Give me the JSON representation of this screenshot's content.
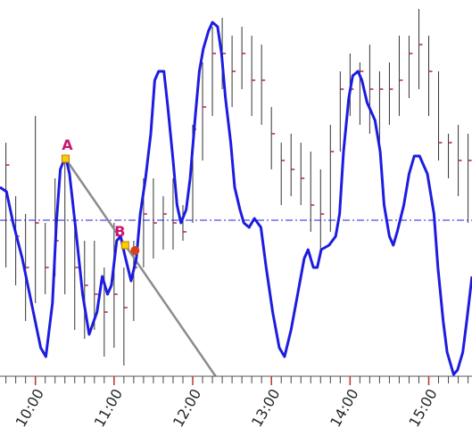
{
  "chart_data": {
    "type": "line",
    "x": [
      573,
      578,
      583,
      590,
      597,
      604,
      608,
      613,
      616,
      619,
      623,
      626,
      631,
      636,
      641,
      647,
      651,
      655,
      658,
      662,
      665,
      668,
      673,
      677,
      680,
      684,
      688,
      691,
      694,
      698,
      701,
      705,
      708,
      711,
      715,
      718,
      722,
      725,
      728,
      732,
      735,
      739,
      742,
      745,
      749,
      752,
      756,
      759,
      763,
      767,
      772,
      776,
      781,
      786,
      790,
      795,
      800,
      805,
      808,
      812,
      815,
      818,
      824,
      829,
      832,
      835,
      839,
      842,
      846,
      849,
      853,
      856,
      859,
      863,
      866,
      870,
      873,
      876,
      881,
      885,
      889,
      893,
      899,
      904,
      907,
      911,
      914,
      919,
      922,
      926,
      929,
      933
    ],
    "values": [
      212,
      207,
      172,
      132,
      82,
      32,
      22,
      82,
      172,
      232,
      247,
      227,
      162,
      92,
      47,
      72,
      112,
      92,
      102,
      152,
      157,
      137,
      107,
      132,
      182,
      222,
      272,
      332,
      342,
      342,
      302,
      242,
      192,
      172,
      187,
      222,
      292,
      342,
      367,
      387,
      397,
      392,
      362,
      312,
      262,
      212,
      187,
      172,
      167,
      177,
      167,
      122,
      72,
      32,
      22,
      52,
      92,
      132,
      142,
      122,
      122,
      142,
      147,
      157,
      182,
      252,
      312,
      337,
      342,
      332,
      307,
      297,
      287,
      252,
      192,
      157,
      147,
      162,
      192,
      227,
      247,
      247,
      227,
      182,
      122,
      62,
      27,
      2,
      7,
      27,
      62,
      112
    ],
    "color": "#1c1ce0",
    "bars": {
      "x": [
        577.5,
        585,
        592.5,
        600,
        607.5,
        615,
        622.5,
        630,
        637.5,
        645,
        652.5,
        660,
        667.5,
        675,
        682.5,
        690,
        697.5,
        705,
        712.5,
        720,
        727.5,
        735,
        742.5,
        750,
        757.5,
        765,
        772.5,
        780,
        787.5,
        795,
        802.5,
        810,
        817.5,
        825,
        832.5,
        840,
        847.5,
        855,
        862.5,
        870,
        877.5,
        885,
        892.5,
        900,
        907.5,
        915,
        922.5,
        930
      ],
      "high": [
        262,
        202,
        182,
        292,
        172,
        222,
        247,
        182,
        152,
        152,
        122,
        172,
        122,
        152,
        222,
        222,
        202,
        222,
        192,
        282,
        352,
        392,
        402,
        382,
        392,
        382,
        372,
        302,
        262,
        272,
        262,
        252,
        232,
        282,
        342,
        362,
        352,
        372,
        342,
        352,
        382,
        382,
        412,
        382,
        342,
        272,
        282,
        272
      ],
      "low": [
        122,
        102,
        62,
        82,
        92,
        112,
        92,
        52,
        42,
        52,
        22,
        32,
        12,
        62,
        122,
        132,
        142,
        142,
        152,
        172,
        242,
        292,
        322,
        302,
        322,
        292,
        282,
        232,
        192,
        202,
        192,
        162,
        142,
        162,
        252,
        292,
        282,
        272,
        262,
        282,
        292,
        312,
        322,
        292,
        242,
        222,
        202,
        172
      ],
      "close": [
        237,
        157,
        122,
        172,
        122,
        152,
        242,
        122,
        102,
        92,
        72,
        92,
        77,
        122,
        182,
        172,
        182,
        172,
        162,
        277,
        302,
        362,
        362,
        342,
        362,
        332,
        332,
        272,
        242,
        232,
        222,
        192,
        182,
        252,
        322,
        322,
        342,
        322,
        322,
        322,
        332,
        362,
        372,
        342,
        262,
        262,
        242,
        242
      ],
      "color": "#333333",
      "close_color": "#b0205a"
    },
    "hline": {
      "value": 175,
      "color": "#1c1ce0"
    },
    "trendline": {
      "x": [
        623,
        668.5
      ],
      "y": [
        244,
        147
      ],
      "color": "#8c8c8c"
    },
    "annotations": [
      {
        "text": "A",
        "x": 623,
        "y": 244
      },
      {
        "text": "B",
        "x": 668.5,
        "y": 147
      }
    ],
    "annotation_color": "#c8186e",
    "marker": {
      "x": 676,
      "y": 141,
      "color": "#d8401a"
    },
    "xlim": [
      573,
      933
    ],
    "ylim": [
      0,
      422
    ],
    "xticks": [
      {
        "value": 600,
        "label": "10:00"
      },
      {
        "value": 660,
        "label": "11:00"
      },
      {
        "value": 720,
        "label": "12:00"
      },
      {
        "value": 780,
        "label": "13:00"
      },
      {
        "value": 840,
        "label": "14:00"
      },
      {
        "value": 900,
        "label": "15:00"
      }
    ]
  }
}
